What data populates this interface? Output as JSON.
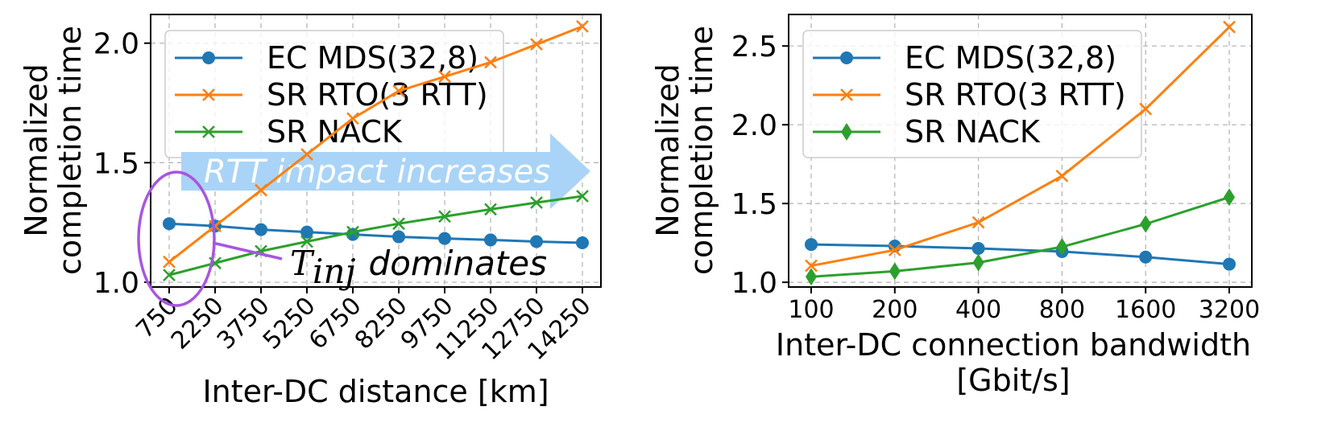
{
  "colors": {
    "ec": "#1f77b4",
    "rto": "#ff7f0e",
    "nack": "#2ca02c",
    "arrow": "#a9d4f7",
    "ellipse": "#a855e0"
  },
  "chart_data": [
    {
      "type": "line",
      "xlabel": "Inter-DC distance [km]",
      "ylabel": "Normalized completion time",
      "ylabel_lines": [
        "Normalized",
        "completion time"
      ],
      "categories": [
        "750",
        "2250",
        "3750",
        "5250",
        "6750",
        "8250",
        "9750",
        "11250",
        "12750",
        "14250"
      ],
      "yticks": [
        "1.0",
        "1.5",
        "2.0"
      ],
      "ytick_values": [
        1.0,
        1.5,
        2.0
      ],
      "ylim": [
        0.98,
        2.12
      ],
      "grid": true,
      "legend": "top-left",
      "series": [
        {
          "name": "EC MDS(32,8)",
          "marker": "circle",
          "color": "#1f77b4",
          "values": [
            1.245,
            1.235,
            1.22,
            1.21,
            1.2,
            1.19,
            1.183,
            1.177,
            1.17,
            1.165
          ]
        },
        {
          "name": "SR RTO(3 RTT)",
          "marker": "x",
          "color": "#ff7f0e",
          "values": [
            1.085,
            1.235,
            1.385,
            1.535,
            1.685,
            1.8,
            1.86,
            1.92,
            1.995,
            2.07
          ]
        },
        {
          "name": "SR NACK",
          "marker": "x",
          "color": "#2ca02c",
          "values": [
            1.03,
            1.08,
            1.13,
            1.17,
            1.21,
            1.245,
            1.275,
            1.305,
            1.333,
            1.36
          ]
        }
      ],
      "annotations": {
        "arrow_text": "RTT impact increases",
        "tinj_symbol": "T",
        "tinj_subscript": "inj",
        "tinj_text": "dominates"
      }
    },
    {
      "type": "line",
      "xlabel": "Inter-DC connection bandwidth",
      "xlabel_line2": "[Gbit/s]",
      "ylabel": "Normalized completion time",
      "ylabel_lines": [
        "Normalized",
        "completion time"
      ],
      "categories": [
        "100",
        "200",
        "400",
        "800",
        "1600",
        "3200"
      ],
      "yticks": [
        "1.0",
        "1.5",
        "2.0",
        "2.5"
      ],
      "ytick_values": [
        1.0,
        1.5,
        2.0,
        2.5
      ],
      "ylim": [
        0.97,
        2.7
      ],
      "grid": true,
      "legend": "top-left",
      "series": [
        {
          "name": "EC MDS(32,8)",
          "marker": "circle",
          "color": "#1f77b4",
          "values": [
            1.24,
            1.23,
            1.215,
            1.195,
            1.16,
            1.115
          ]
        },
        {
          "name": "SR RTO(3 RTT)",
          "marker": "x",
          "color": "#ff7f0e",
          "values": [
            1.105,
            1.205,
            1.38,
            1.675,
            2.1,
            2.62
          ]
        },
        {
          "name": "SR NACK",
          "marker": "diamond",
          "color": "#2ca02c",
          "values": [
            1.035,
            1.07,
            1.125,
            1.225,
            1.37,
            1.54
          ]
        }
      ]
    }
  ]
}
